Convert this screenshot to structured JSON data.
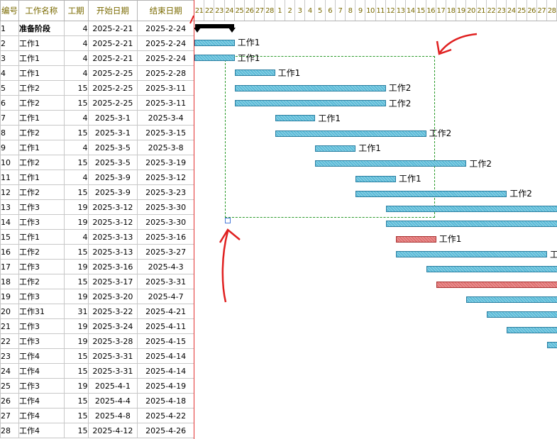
{
  "table": {
    "headers": {
      "num": "编号",
      "name": "工作名称",
      "duration": "工期",
      "start": "开始日期",
      "end": "结束日期"
    },
    "rows": [
      {
        "num": "1",
        "name": "准备阶段",
        "duration": "4",
        "start": "2025-2-21",
        "end": "2025-2-24",
        "bold": true
      },
      {
        "num": "2",
        "name": "工作1",
        "duration": "4",
        "start": "2025-2-21",
        "end": "2025-2-24",
        "indent": true
      },
      {
        "num": "3",
        "name": "工作1",
        "duration": "4",
        "start": "2025-2-21",
        "end": "2025-2-24"
      },
      {
        "num": "4",
        "name": "工作1",
        "duration": "4",
        "start": "2025-2-25",
        "end": "2025-2-28"
      },
      {
        "num": "5",
        "name": "工作2",
        "duration": "15",
        "start": "2025-2-25",
        "end": "2025-3-11"
      },
      {
        "num": "6",
        "name": "工作2",
        "duration": "15",
        "start": "2025-2-25",
        "end": "2025-3-11"
      },
      {
        "num": "7",
        "name": "工作1",
        "duration": "4",
        "start": "2025-3-1",
        "end": "2025-3-4"
      },
      {
        "num": "8",
        "name": "工作2",
        "duration": "15",
        "start": "2025-3-1",
        "end": "2025-3-15"
      },
      {
        "num": "9",
        "name": "工作1",
        "duration": "4",
        "start": "2025-3-5",
        "end": "2025-3-8"
      },
      {
        "num": "10",
        "name": "工作2",
        "duration": "15",
        "start": "2025-3-5",
        "end": "2025-3-19"
      },
      {
        "num": "11",
        "name": "工作1",
        "duration": "4",
        "start": "2025-3-9",
        "end": "2025-3-12"
      },
      {
        "num": "12",
        "name": "工作2",
        "duration": "15",
        "start": "2025-3-9",
        "end": "2025-3-23"
      },
      {
        "num": "13",
        "name": "工作3",
        "duration": "19",
        "start": "2025-3-12",
        "end": "2025-3-30"
      },
      {
        "num": "14",
        "name": "工作3",
        "duration": "19",
        "start": "2025-3-12",
        "end": "2025-3-30"
      },
      {
        "num": "15",
        "name": "工作1",
        "duration": "4",
        "start": "2025-3-13",
        "end": "2025-3-16"
      },
      {
        "num": "16",
        "name": "工作2",
        "duration": "15",
        "start": "2025-3-13",
        "end": "2025-3-27"
      },
      {
        "num": "17",
        "name": "工作3",
        "duration": "19",
        "start": "2025-3-16",
        "end": "2025-4-3"
      },
      {
        "num": "18",
        "name": "工作2",
        "duration": "15",
        "start": "2025-3-17",
        "end": "2025-3-31"
      },
      {
        "num": "19",
        "name": "工作3",
        "duration": "19",
        "start": "2025-3-20",
        "end": "2025-4-7"
      },
      {
        "num": "20",
        "name": "工作31",
        "duration": "31",
        "start": "2025-3-22",
        "end": "2025-4-21"
      },
      {
        "num": "21",
        "name": "工作3",
        "duration": "19",
        "start": "2025-3-24",
        "end": "2025-4-11"
      },
      {
        "num": "22",
        "name": "工作3",
        "duration": "19",
        "start": "2025-3-28",
        "end": "2025-4-15"
      },
      {
        "num": "23",
        "name": "工作4",
        "duration": "15",
        "start": "2025-3-31",
        "end": "2025-4-14"
      },
      {
        "num": "24",
        "name": "工作4",
        "duration": "15",
        "start": "2025-3-31",
        "end": "2025-4-14"
      },
      {
        "num": "25",
        "name": "工作3",
        "duration": "19",
        "start": "2025-4-1",
        "end": "2025-4-19"
      },
      {
        "num": "26",
        "name": "工作4",
        "duration": "15",
        "start": "2025-4-4",
        "end": "2025-4-18"
      },
      {
        "num": "27",
        "name": "工作4",
        "duration": "15",
        "start": "2025-4-8",
        "end": "2025-4-22"
      },
      {
        "num": "28",
        "name": "工作4",
        "duration": "15",
        "start": "2025-4-12",
        "end": "2025-4-26"
      }
    ]
  },
  "timeline": {
    "days": [
      "21",
      "22",
      "23",
      "24",
      "25",
      "26",
      "27",
      "28",
      "1",
      "2",
      "3",
      "4",
      "5",
      "6",
      "7",
      "8",
      "9",
      "10",
      "11",
      "12",
      "13",
      "14",
      "15",
      "16",
      "17",
      "18",
      "19",
      "20",
      "21",
      "22",
      "23",
      "24",
      "25",
      "26",
      "27",
      "28"
    ]
  },
  "gantt": {
    "summary_rows": [
      1
    ],
    "critical_rows": [
      15,
      18
    ],
    "label_rows": [
      2,
      3,
      4,
      5,
      6,
      7,
      8,
      9,
      10,
      11,
      12,
      15,
      16
    ],
    "truncated_labels": {
      "16": "工"
    }
  },
  "colors": {
    "bar_fill": "#5bbbd8",
    "bar_border": "#2a7ea0",
    "critical_fill": "#e07070",
    "header_text": "#7a6a00",
    "divider": "#e23030",
    "selection": "#2a9a2a",
    "annotation": "#e02020"
  }
}
